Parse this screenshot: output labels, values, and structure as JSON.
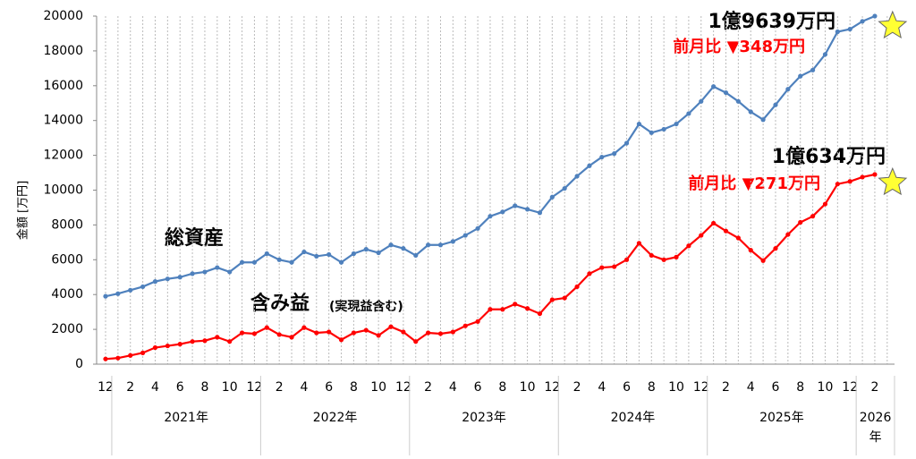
{
  "chart_data": {
    "type": "line",
    "y_label": "金額 [万円]",
    "categories": [
      "12",
      null,
      "2",
      null,
      "4",
      null,
      "6",
      null,
      "8",
      null,
      "10",
      null,
      "12",
      null,
      "2",
      null,
      "4",
      null,
      "6",
      null,
      "8",
      null,
      "10",
      null,
      "12",
      null,
      "2",
      null,
      "4",
      null,
      "6",
      null,
      "8",
      null,
      "10",
      null,
      "12",
      null,
      "2",
      null,
      "4",
      null,
      "6",
      null,
      "8",
      null,
      "10",
      null,
      "12",
      null,
      "2",
      null,
      "4",
      null,
      "6",
      null,
      "8",
      null,
      "10",
      null,
      "12",
      null,
      "2",
      null
    ],
    "years": [
      "2021年",
      "2022年",
      "2023年",
      "2024年",
      "2025年",
      "2026年"
    ],
    "series": [
      {
        "name": "総資産",
        "color": "#4f81bd",
        "values": [
          3900,
          4050,
          4250,
          4450,
          4750,
          4900,
          5000,
          5200,
          5300,
          5550,
          5300,
          5850,
          5850,
          6350,
          6000,
          5850,
          6450,
          6200,
          6300,
          5850,
          6350,
          6600,
          6400,
          6850,
          6650,
          6250,
          6850,
          6850,
          7050,
          7400,
          7800,
          8500,
          8750,
          9100,
          8900,
          8700,
          9600,
          10100,
          10800,
          11400,
          11900,
          12100,
          12700,
          13800,
          13300,
          13500,
          13800,
          14400,
          15100,
          15950,
          15600,
          15100,
          14500,
          14050,
          14900,
          15800,
          16550,
          16900,
          17800,
          19100,
          19250,
          19700,
          20000,
          19639
        ]
      },
      {
        "name": "含み益",
        "color": "#ff0000",
        "values": [
          300,
          350,
          500,
          650,
          950,
          1050,
          1150,
          1300,
          1350,
          1550,
          1300,
          1800,
          1750,
          2100,
          1700,
          1550,
          2100,
          1800,
          1850,
          1400,
          1800,
          1950,
          1650,
          2150,
          1850,
          1300,
          1800,
          1750,
          1850,
          2200,
          2450,
          3150,
          3150,
          3450,
          3200,
          2900,
          3700,
          3800,
          4450,
          5200,
          5550,
          5600,
          6000,
          6950,
          6250,
          6000,
          6150,
          6800,
          7400,
          8100,
          7650,
          7250,
          6550,
          5950,
          6650,
          7450,
          8150,
          8500,
          9200,
          10350,
          10500,
          10750,
          10900,
          10634
        ]
      }
    ],
    "last_marker": "star",
    "annotations": [
      "(実現益含む)",
      "1億9639万円",
      "前月比 ▼348万円",
      "1億634万円",
      "前月比 ▼271万円"
    ],
    "ylim": [
      0,
      20000
    ],
    "yticks": [
      0,
      2000,
      4000,
      6000,
      8000,
      10000,
      12000,
      14000,
      16000,
      18000,
      20000
    ],
    "grid": true
  }
}
